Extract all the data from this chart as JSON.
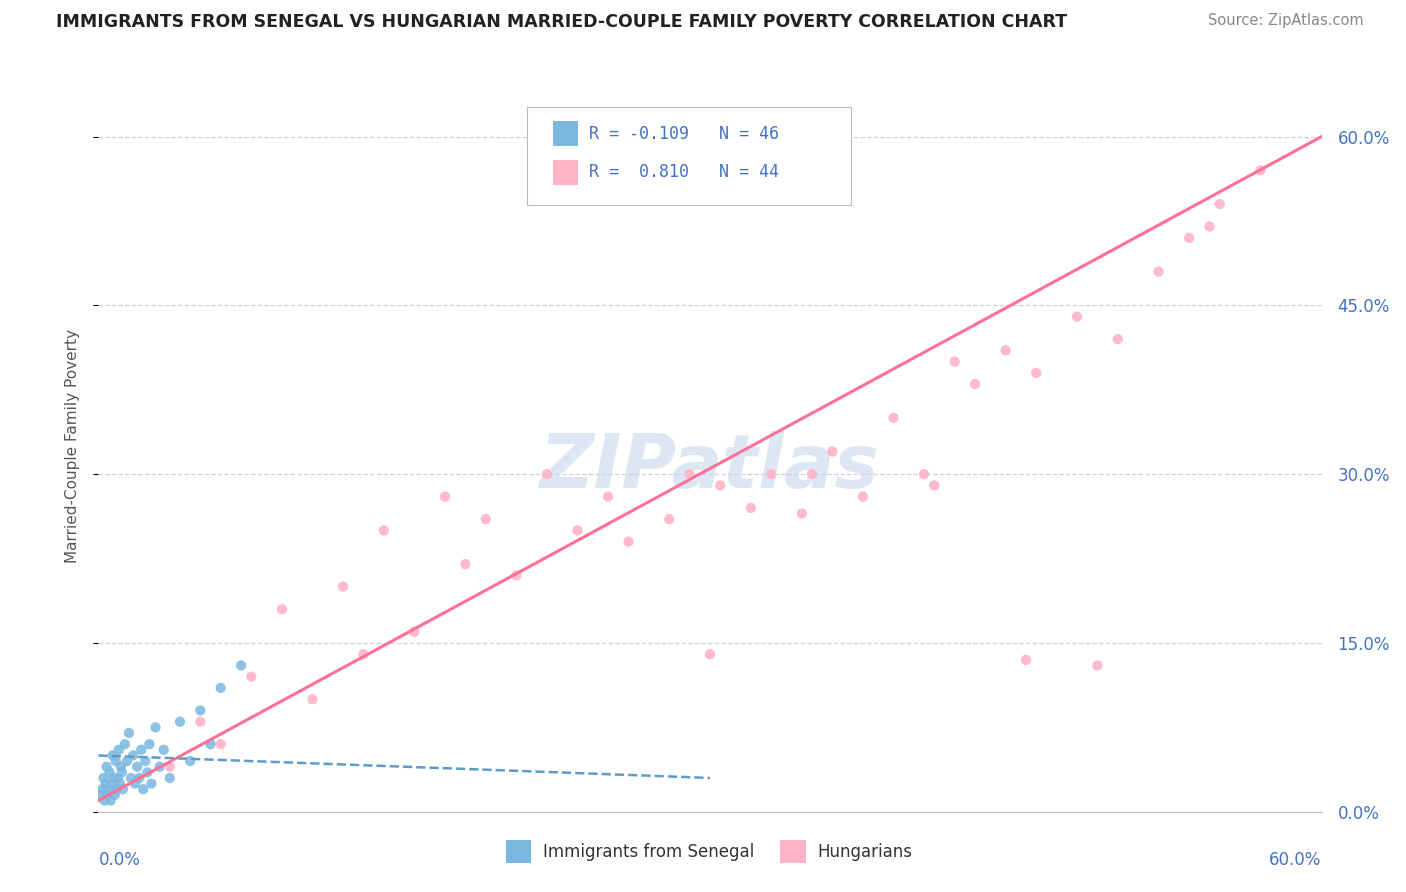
{
  "title": "IMMIGRANTS FROM SENEGAL VS HUNGARIAN MARRIED-COUPLE FAMILY POVERTY CORRELATION CHART",
  "source": "Source: ZipAtlas.com",
  "ylabel": "Married-Couple Family Poverty",
  "yaxis_ticks": [
    "0.0%",
    "15.0%",
    "30.0%",
    "45.0%",
    "60.0%"
  ],
  "yaxis_tick_values": [
    0,
    15,
    30,
    45,
    60
  ],
  "xmin": 0,
  "xmax": 60,
  "ymin": 0,
  "ymax": 65,
  "color_blue": "#7ab8e0",
  "color_pink": "#ffb3c6",
  "color_blue_line": "#5a9ec8",
  "color_pink_line": "#ff7096",
  "watermark": "ZIPatlas",
  "background_color": "#ffffff",
  "grid_color": "#cccccc",
  "blue_scatter_x": [
    0.15,
    0.2,
    0.25,
    0.3,
    0.35,
    0.4,
    0.45,
    0.5,
    0.55,
    0.6,
    0.65,
    0.7,
    0.75,
    0.8,
    0.85,
    0.9,
    0.95,
    1.0,
    1.05,
    1.1,
    1.15,
    1.2,
    1.3,
    1.4,
    1.5,
    1.6,
    1.7,
    1.8,
    1.9,
    2.0,
    2.1,
    2.2,
    2.3,
    2.4,
    2.5,
    2.6,
    2.8,
    3.0,
    3.2,
    3.5,
    4.0,
    4.5,
    5.0,
    5.5,
    6.0,
    7.0
  ],
  "blue_scatter_y": [
    1.5,
    2.0,
    3.0,
    1.0,
    2.5,
    4.0,
    1.5,
    2.0,
    3.5,
    1.0,
    2.5,
    5.0,
    3.0,
    1.5,
    4.5,
    2.0,
    3.0,
    5.5,
    2.5,
    4.0,
    3.5,
    2.0,
    6.0,
    4.5,
    7.0,
    3.0,
    5.0,
    2.5,
    4.0,
    3.0,
    5.5,
    2.0,
    4.5,
    3.5,
    6.0,
    2.5,
    7.5,
    4.0,
    5.5,
    3.0,
    8.0,
    4.5,
    9.0,
    6.0,
    11.0,
    13.0
  ],
  "pink_scatter_x": [
    3.5,
    5.0,
    6.0,
    7.5,
    9.0,
    10.5,
    12.0,
    13.0,
    14.0,
    15.5,
    17.0,
    18.0,
    19.0,
    20.5,
    22.0,
    23.5,
    25.0,
    26.0,
    28.0,
    29.0,
    30.5,
    32.0,
    33.0,
    34.5,
    36.0,
    37.5,
    39.0,
    40.5,
    42.0,
    43.0,
    44.5,
    46.0,
    48.0,
    50.0,
    52.0,
    53.5,
    55.0,
    57.0,
    30.0,
    35.0,
    41.0,
    45.5,
    49.0,
    54.5
  ],
  "pink_scatter_y": [
    4.0,
    8.0,
    6.0,
    12.0,
    18.0,
    10.0,
    20.0,
    14.0,
    25.0,
    16.0,
    28.0,
    22.0,
    26.0,
    21.0,
    30.0,
    25.0,
    28.0,
    24.0,
    26.0,
    30.0,
    29.0,
    27.0,
    30.0,
    26.5,
    32.0,
    28.0,
    35.0,
    30.0,
    40.0,
    38.0,
    41.0,
    39.0,
    44.0,
    42.0,
    48.0,
    51.0,
    54.0,
    57.0,
    14.0,
    30.0,
    29.0,
    13.5,
    13.0,
    52.0
  ],
  "blue_line_x": [
    0.0,
    30.0
  ],
  "blue_line_y": [
    5.0,
    3.0
  ],
  "pink_line_x": [
    0.0,
    60.0
  ],
  "pink_line_y": [
    1.0,
    60.0
  ]
}
